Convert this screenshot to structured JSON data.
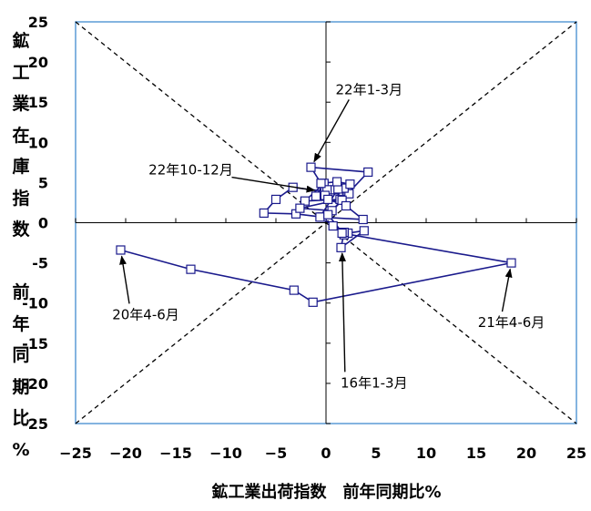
{
  "chart_data": {
    "type": "scatter",
    "title": "",
    "ylabel_lines": [
      "鉱",
      "工",
      "業",
      "在",
      "庫",
      "指",
      "数",
      "",
      "前",
      "年",
      "同",
      "期",
      "比",
      "%"
    ],
    "xlabel": "鉱工業出荷指数　前年同期比%",
    "xlim": [
      -25,
      25
    ],
    "ylim": [
      -25,
      25
    ],
    "xticks": [
      "−25",
      "−20",
      "−15",
      "−10",
      "−5",
      "0",
      "5",
      "10",
      "15",
      "20",
      "25"
    ],
    "yticks": [
      "25",
      "20",
      "15",
      "10",
      "5",
      "0",
      "-5",
      "-10",
      "-15",
      "-20",
      "-25"
    ],
    "grid": false,
    "diagonals": true,
    "series": [
      {
        "color": "#1a1a8c",
        "x": [
          1.8,
          1.5,
          3.8,
          2.2,
          0.7,
          -0.4,
          -3.0,
          -6.2,
          -5.0,
          -3.3,
          -0.1,
          -1.0,
          -0.2,
          -2.1,
          1.4,
          -2.6,
          0.6,
          2.3,
          1.8,
          1.6,
          0.9,
          0.1,
          -0.1,
          0.2,
          2.0,
          3.7,
          -0.6,
          1.2,
          2.4,
          1.1,
          -0.5,
          -1.5,
          4.2,
          0.2,
          1.8,
          1.8,
          1.6,
          18.5,
          -1.3,
          -3.2,
          -13.5,
          -20.5
        ],
        "y": [
          -1.2,
          -3.1,
          -1.0,
          -1.3,
          -0.4,
          0.7,
          1.1,
          1.2,
          2.9,
          4.4,
          3.9,
          3.3,
          4.9,
          2.7,
          2.9,
          1.8,
          1.5,
          3.6,
          4.3,
          2.8,
          4.1,
          4.1,
          3.4,
          2.9,
          2.1,
          0.4,
          0.7,
          4.2,
          4.8,
          5.1,
          4.9,
          6.9,
          6.3,
          1.0,
          -1.5,
          -1.2,
          -1.3,
          -5.0,
          -9.9,
          -8.4,
          -5.8,
          -3.4
        ]
      }
    ],
    "annotations": [
      {
        "text": "22年1-3月",
        "x": 4.3,
        "y": 16.0,
        "point": [
          -1.5,
          6.9
        ]
      },
      {
        "text": "22年10-12月",
        "x": -13.5,
        "y": 6.0,
        "point": [
          -0.5,
          3.9
        ]
      },
      {
        "text": "20年4-6月",
        "x": -18.0,
        "y": -12.0,
        "point": [
          -20.5,
          -3.4
        ]
      },
      {
        "text": "21年4-6月",
        "x": 18.5,
        "y": -13.0,
        "point": [
          18.5,
          -5.0
        ]
      },
      {
        "text": "16年1-3月",
        "x": 4.8,
        "y": -20.5,
        "point": [
          1.6,
          -3.0
        ]
      }
    ]
  }
}
